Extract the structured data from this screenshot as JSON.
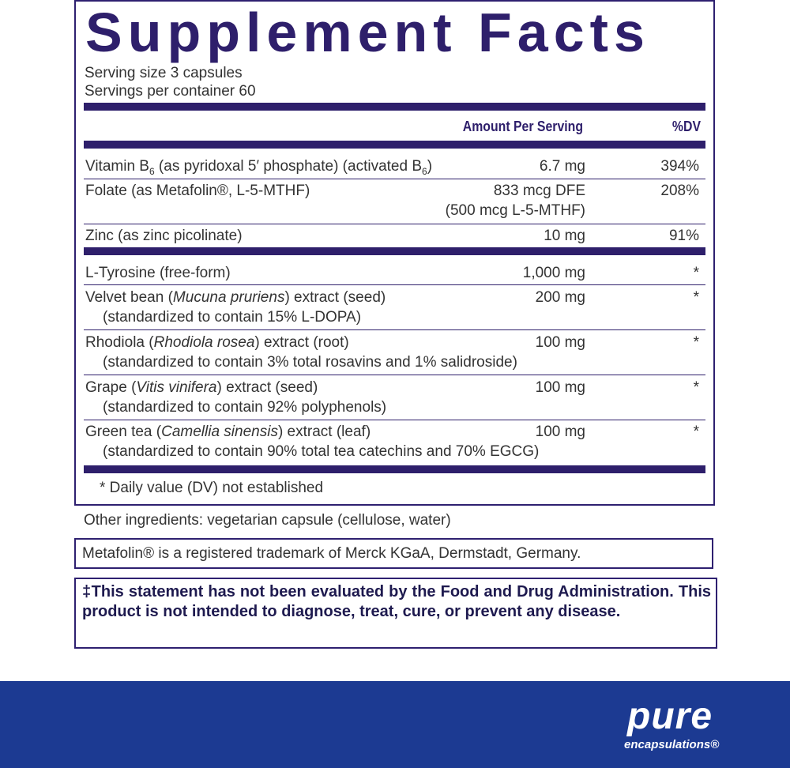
{
  "title": "Supplement Facts",
  "serving_size": "Serving size  3 capsules",
  "servings_per_container": "Servings per container  60",
  "header": {
    "amount": "Amount Per Serving",
    "dv": "%DV"
  },
  "rows": [
    {
      "name_a": "Vitamin B",
      "sub_a": "6",
      "name_b": " (as pyridoxal 5′ phosphate) (activated B",
      "sub_b": "6",
      "name_c": ")",
      "amount": "6.7 mg",
      "dv": "394%"
    },
    {
      "name": "Folate (as Metafolin®, L-5-MTHF)",
      "amount": "833 mcg DFE",
      "amount2": "(500 mcg L-5-MTHF)",
      "dv": "208%"
    },
    {
      "name": "Zinc (as zinc picolinate)",
      "amount": "10 mg",
      "dv": "91%"
    },
    {
      "name": "L-Tyrosine (free-form)",
      "amount": "1,000 mg",
      "dv": "*"
    },
    {
      "pre": "Velvet bean (",
      "latin": "Mucuna pruriens",
      "post": ") extract (seed)",
      "detail": "(standardized to contain 15% L-DOPA)",
      "amount": "200 mg",
      "dv": "*"
    },
    {
      "pre": "Rhodiola (",
      "latin": "Rhodiola rosea",
      "post": ") extract (root)",
      "detail": "(standardized to contain 3% total rosavins and 1% salidroside)",
      "amount": "100 mg",
      "dv": "*"
    },
    {
      "pre": "Grape (",
      "latin": "Vitis vinifera",
      "post": ") extract (seed)",
      "detail": "(standardized to contain 92% polyphenols)",
      "amount": "100 mg",
      "dv": "*"
    },
    {
      "pre": "Green tea (",
      "latin": "Camellia sinensis",
      "post": ") extract (leaf)",
      "detail": "(standardized to contain 90% total tea catechins and 70% EGCG)",
      "amount": "100 mg",
      "dv": "*"
    }
  ],
  "footnote": "* Daily value (DV) not established",
  "other_ingredients": "Other ingredients: vegetarian capsule (cellulose, water)",
  "trademark": "Metafolin® is a registered trademark of Merck KGaA, Dermstadt, Germany.",
  "disclaimer": "‡This statement has not been evaluated by the Food and Drug Administration. This product is not intended to diagnose, treat, cure, or prevent any disease.",
  "brand": {
    "logo_main": "pure",
    "logo_sub": "encapsulations®",
    "band_color": "#1c3a92",
    "label_color": "#2e1f6b"
  }
}
